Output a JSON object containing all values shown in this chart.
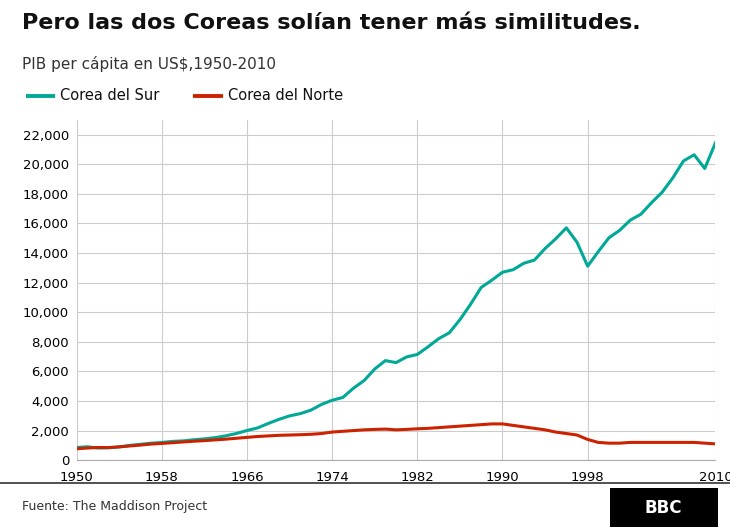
{
  "title": "Pero las dos Coreas solían tener más similitudes.",
  "subtitle": "PIB per cápita en US$,1950-2010",
  "legend_sur": "Corea del Sur",
  "legend_norte": "Corea del Norte",
  "source": "Fuente: The Maddison Project",
  "bbc_label": "BBC",
  "color_sur": "#00A896",
  "color_norte": "#CC2200",
  "background_color": "#ffffff",
  "grid_color": "#cccccc",
  "years_sur": [
    1950,
    1951,
    1952,
    1953,
    1954,
    1955,
    1956,
    1957,
    1958,
    1959,
    1960,
    1961,
    1962,
    1963,
    1964,
    1965,
    1966,
    1967,
    1968,
    1969,
    1970,
    1971,
    1972,
    1973,
    1974,
    1975,
    1976,
    1977,
    1978,
    1979,
    1980,
    1981,
    1982,
    1983,
    1984,
    1985,
    1986,
    1987,
    1988,
    1989,
    1990,
    1991,
    1992,
    1993,
    1994,
    1995,
    1996,
    1997,
    1998,
    1999,
    2000,
    2001,
    2002,
    2003,
    2004,
    2005,
    2006,
    2007,
    2008,
    2009,
    2010
  ],
  "gdp_sur": [
    854,
    907,
    820,
    837,
    896,
    1001,
    1074,
    1148,
    1195,
    1269,
    1302,
    1378,
    1440,
    1521,
    1644,
    1802,
    2004,
    2180,
    2482,
    2756,
    2993,
    3145,
    3378,
    3766,
    4049,
    4235,
    4862,
    5378,
    6161,
    6726,
    6592,
    6976,
    7142,
    7654,
    8205,
    8603,
    9490,
    10528,
    11670,
    12160,
    12696,
    12867,
    13302,
    13517,
    14297,
    14955,
    15695,
    14723,
    13106,
    14089,
    15025,
    15522,
    16213,
    16614,
    17392,
    18103,
    19070,
    20212,
    20632,
    19705,
    21433
  ],
  "years_norte": [
    1950,
    1951,
    1952,
    1953,
    1954,
    1955,
    1956,
    1957,
    1958,
    1959,
    1960,
    1961,
    1962,
    1963,
    1964,
    1965,
    1966,
    1967,
    1968,
    1969,
    1970,
    1971,
    1972,
    1973,
    1974,
    1975,
    1976,
    1977,
    1978,
    1979,
    1980,
    1981,
    1982,
    1983,
    1984,
    1985,
    1986,
    1987,
    1988,
    1989,
    1990,
    1991,
    1992,
    1993,
    1994,
    1995,
    1996,
    1997,
    1998,
    1999,
    2000,
    2001,
    2002,
    2003,
    2004,
    2005,
    2006,
    2007,
    2008,
    2009,
    2010
  ],
  "gdp_norte": [
    770,
    820,
    860,
    850,
    900,
    960,
    1020,
    1090,
    1130,
    1180,
    1230,
    1280,
    1320,
    1370,
    1420,
    1480,
    1540,
    1600,
    1640,
    1680,
    1700,
    1720,
    1750,
    1800,
    1900,
    1950,
    2000,
    2050,
    2080,
    2100,
    2050,
    2080,
    2120,
    2150,
    2200,
    2250,
    2300,
    2350,
    2400,
    2450,
    2450,
    2350,
    2250,
    2150,
    2050,
    1900,
    1800,
    1700,
    1400,
    1200,
    1150,
    1150,
    1200,
    1200,
    1200,
    1200,
    1200,
    1200,
    1200,
    1150,
    1100
  ],
  "xlim": [
    1950,
    2010
  ],
  "ylim": [
    0,
    23000
  ],
  "yticks": [
    0,
    2000,
    4000,
    6000,
    8000,
    10000,
    12000,
    14000,
    16000,
    18000,
    20000,
    22000
  ],
  "xticks": [
    1950,
    1958,
    1966,
    1974,
    1982,
    1990,
    1998,
    2010
  ],
  "title_fontsize": 16,
  "subtitle_fontsize": 11,
  "legend_fontsize": 10.5,
  "tick_fontsize": 9.5,
  "source_fontsize": 9,
  "bbc_fontsize": 12,
  "line_width": 2.2
}
